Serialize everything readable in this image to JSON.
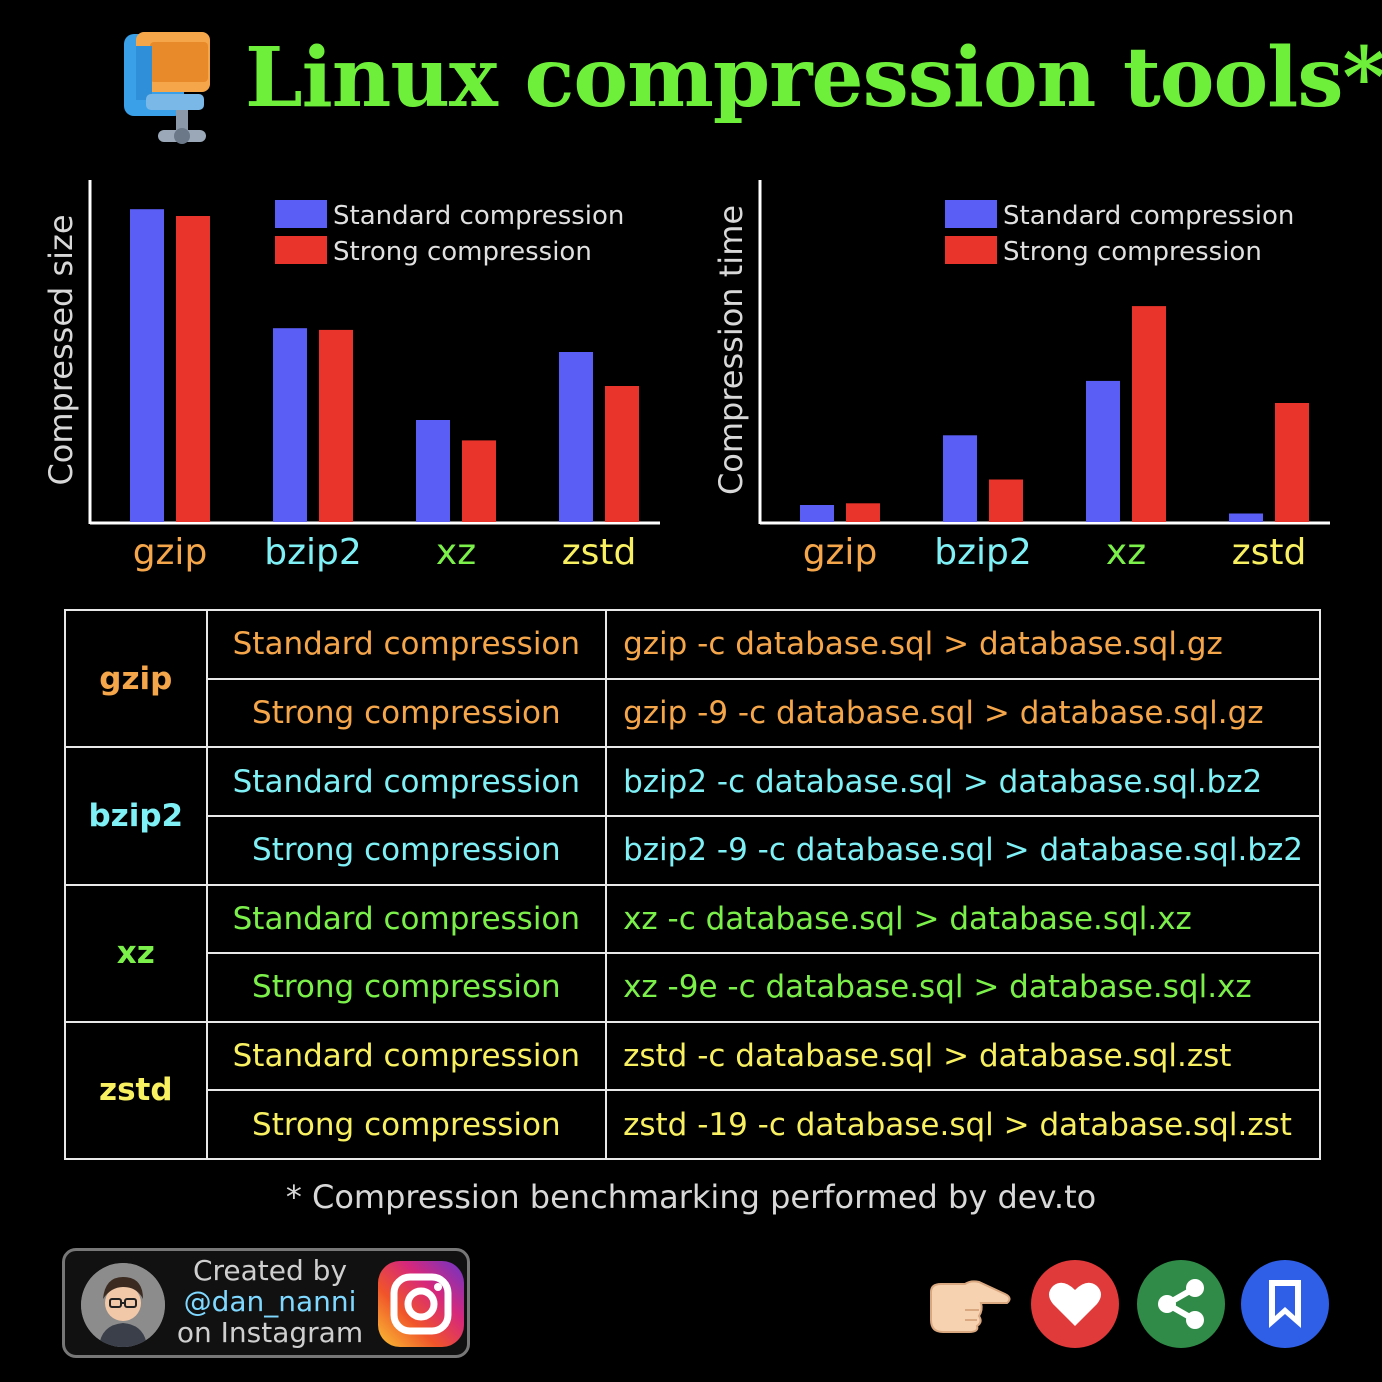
{
  "title": "Linux compression tools*",
  "colors": {
    "standard": "#5b5ef5",
    "strong": "#e8342a",
    "gzip": "#f5a64a",
    "bzip2": "#7ff0f5",
    "xz": "#7cf04a",
    "zstd": "#f8f060",
    "title": "#6ef03a"
  },
  "chart_data": [
    {
      "type": "bar",
      "ylabel": "Compressed size",
      "xlabel": "",
      "categories": [
        "gzip",
        "bzip2",
        "xz",
        "zstd"
      ],
      "series": [
        {
          "name": "Standard compression",
          "values": [
            92,
            57,
            30,
            50
          ]
        },
        {
          "name": "Strong compression",
          "values": [
            90,
            56.5,
            24,
            40
          ]
        }
      ],
      "ylim": [
        0,
        100
      ],
      "legend": "top-right",
      "grid": false
    },
    {
      "type": "bar",
      "ylabel": "Compression time",
      "xlabel": "",
      "categories": [
        "gzip",
        "bzip2",
        "xz",
        "zstd"
      ],
      "series": [
        {
          "name": "Standard compression",
          "values": [
            5,
            25.5,
            41.5,
            2.5
          ]
        },
        {
          "name": "Strong compression",
          "values": [
            5.5,
            12.5,
            63.5,
            35
          ]
        }
      ],
      "ylim": [
        0,
        100
      ],
      "legend": "top-right",
      "grid": false
    }
  ],
  "table": {
    "rows": [
      {
        "tool": "gzip",
        "mode": "Standard compression",
        "cmd": "gzip -c database.sql > database.sql.gz"
      },
      {
        "tool": "gzip",
        "mode": "Strong compression",
        "cmd": "gzip -9 -c database.sql > database.sql.gz"
      },
      {
        "tool": "bzip2",
        "mode": "Standard compression",
        "cmd": "bzip2 -c database.sql > database.sql.bz2"
      },
      {
        "tool": "bzip2",
        "mode": "Strong compression",
        "cmd": "bzip2 -9 -c database.sql > database.sql.bz2"
      },
      {
        "tool": "xz",
        "mode": "Standard compression",
        "cmd": "xz -c database.sql > database.sql.xz"
      },
      {
        "tool": "xz",
        "mode": "Strong compression",
        "cmd": "xz -9e -c database.sql > database.sql.xz"
      },
      {
        "tool": "zstd",
        "mode": "Standard compression",
        "cmd": "zstd -c database.sql > database.sql.zst"
      },
      {
        "tool": "zstd",
        "mode": "Strong compression",
        "cmd": "zstd -19 -c database.sql > database.sql.zst"
      }
    ]
  },
  "footnote": "* Compression benchmarking performed by dev.to",
  "credit": {
    "line1": "Created by",
    "line2": "@dan_nanni",
    "line3": "on Instagram"
  },
  "icons": {
    "logo": "compress-clamp-icon",
    "avatar": "avatar-icon",
    "instagram": "instagram-icon",
    "pointer": "pointing-hand-icon",
    "like": "heart-icon",
    "share": "share-icon",
    "save": "bookmark-icon"
  }
}
